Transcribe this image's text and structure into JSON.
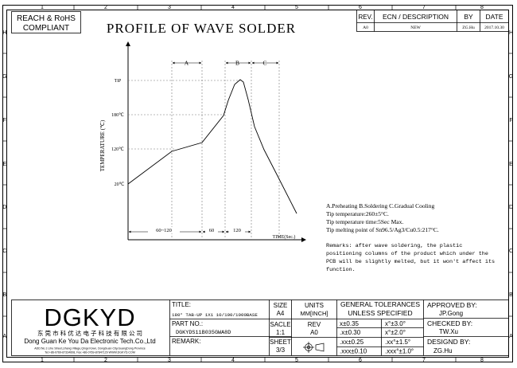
{
  "border": {
    "cols_top": [
      "1",
      "2",
      "3",
      "4",
      "5",
      "6",
      "7",
      "8"
    ],
    "cols_bottom": [
      "1",
      "2",
      "3",
      "4",
      "5",
      "6",
      "7",
      "8"
    ],
    "rows_left": [
      "H",
      "G",
      "F",
      "E",
      "D",
      "C",
      "B",
      "A"
    ],
    "rows_right": [
      "H",
      "G",
      "F",
      "E",
      "D",
      "C",
      "B",
      "A"
    ]
  },
  "compliance": {
    "line1": "REACH & RoHS",
    "line2": "COMPLIANT"
  },
  "title": "PROFILE OF WAVE SOLDER",
  "revision": {
    "headers": {
      "rev": "REV.",
      "ecn": "ECN / DESCRIPTION",
      "by": "BY",
      "date": "DATE"
    },
    "row": {
      "rev": "A0",
      "ecn": "NEW",
      "by": "ZG.Hu",
      "date": "2017.10.30"
    }
  },
  "profile": {
    "y_axis_label": "TEMPERATURE (℃)",
    "x_axis_label": "TIME(Sec.)",
    "y_levels": [
      "TiP",
      "180℃",
      "120℃",
      "20℃"
    ],
    "zones": [
      "A",
      "B",
      "C"
    ],
    "durations": [
      "60~120",
      "60",
      "120"
    ]
  },
  "notes": {
    "line1": "A.Preheating  B.Soldering  C.Gradual Cooling",
    "line2": "Tip temperature:260±5°C.",
    "line3": "Tip temperature time:5Sec Max.",
    "line4": "Tip melting point of Sn96.5/Ag3/Cu0.5:217°C.",
    "remarks": [
      "Remarks: after wave soldering, the plastic",
      "positioning columns of the product  which under the",
      "PCB will be slightly melted, but it won't affect its",
      "function."
    ]
  },
  "company": {
    "logo": "DGKYD",
    "name_cn": "东 莞 市 科 优 达 电 子 科 技 有 限 公 司",
    "name_en": "Dong Guan Ke You Da Electronic Tech.Co.,Ltd",
    "address": "ADD:No.1 Lihe Street,Lihang Village,Qingxi town, DongGuan City,GuangDong Province",
    "contact": "Tel:+86-0769-87334608, Fax:+86-0769-87847129  WWW.DGKYD.COM"
  },
  "titleblock": {
    "title_label": "TITLE:",
    "title_value": "180° TAB-UP 1X1 10/100/1000BASE",
    "part_label": "PART NO.:",
    "part_value": "DGKYDS11B035GWA8D",
    "remark_label": "REMARK:",
    "size_label": "SIZE",
    "size_value": "A4",
    "units_label": "UNITS",
    "units_value": "MM[INCH]",
    "scale_label": "SACLE",
    "scale_value": "1:1",
    "rev_label": "REV",
    "rev_value": "A0",
    "sheet_label": "SHEET",
    "sheet_value": "3/3",
    "tol_title1": "GENERAL TOLERANCES",
    "tol_title2": "UNLESS SPECIFIED",
    "tol": [
      [
        "x±0.35",
        "x°±3.0°"
      ],
      [
        ".x±0.30",
        "x°±2.0°"
      ],
      [
        ".xx±0.25",
        ".xx°±1.5°"
      ],
      [
        ".xxx±0.10",
        ".xxx°±1.0°"
      ]
    ],
    "approved_label": "APPROVED BY:",
    "approved_value": "JP.Gong",
    "checked_label": "CHECKED BY:",
    "checked_value": "TW.Xu",
    "designed_label": "DESIGND BY:",
    "designed_value": "ZG.Hu"
  }
}
